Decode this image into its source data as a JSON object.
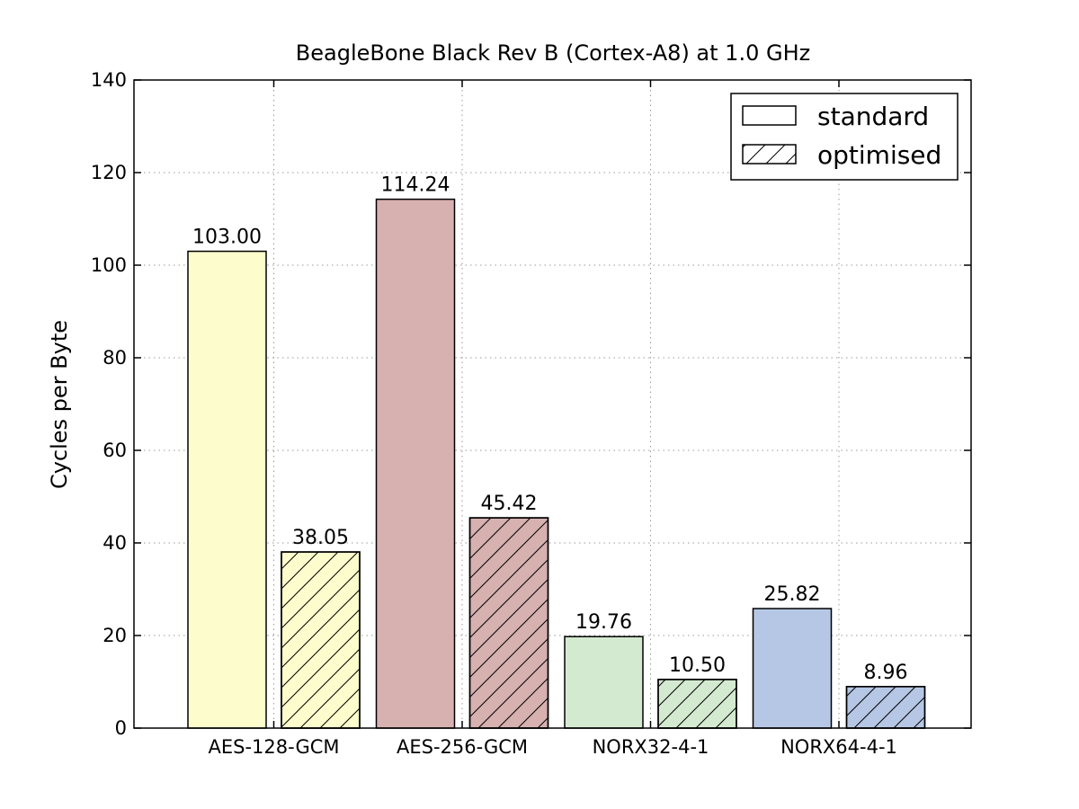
{
  "chart_data": {
    "type": "bar",
    "title": "BeagleBone Black Rev B (Cortex-A8) at 1.0 GHz",
    "xlabel": "",
    "ylabel": "Cycles per Byte",
    "ylim": [
      0,
      140
    ],
    "yticks": [
      0,
      20,
      40,
      60,
      80,
      100,
      120,
      140
    ],
    "grid": true,
    "legend_position": "top-right",
    "categories": [
      "AES-128-GCM",
      "AES-256-GCM",
      "NORX32-4-1",
      "NORX64-4-1"
    ],
    "category_colors": [
      "#fcfccc",
      "#d7b0b0",
      "#d4ead0",
      "#b6c7e5"
    ],
    "series": [
      {
        "name": "standard",
        "hatch": "none",
        "values": [
          103.0,
          114.24,
          19.76,
          25.82
        ]
      },
      {
        "name": "optimised",
        "hatch": "diagonal",
        "values": [
          38.05,
          45.42,
          10.5,
          8.96
        ]
      }
    ],
    "data_labels": [
      [
        "103.00",
        "114.24",
        "19.76",
        "25.82"
      ],
      [
        "38.05",
        "45.42",
        "10.50",
        "8.96"
      ]
    ]
  }
}
